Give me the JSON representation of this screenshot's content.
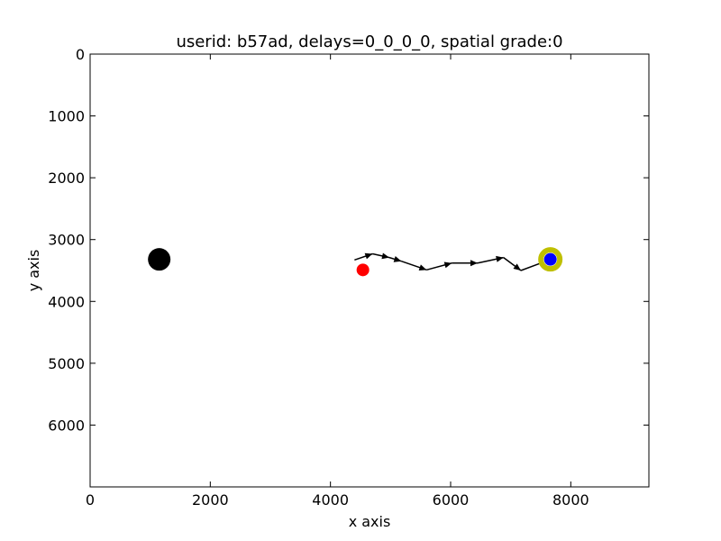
{
  "chart_data": {
    "type": "scatter",
    "title": "userid: b57ad, delays=0_0_0_0, spatial grade:0",
    "xlabel": "x axis",
    "ylabel": "y axis",
    "xlim": [
      0,
      9300
    ],
    "ylim": [
      0,
      7000
    ],
    "y_inverted": true,
    "grid": false,
    "x_ticks": [
      0,
      2000,
      4000,
      6000,
      8000
    ],
    "y_ticks": [
      0,
      1000,
      2000,
      3000,
      4000,
      5000,
      6000
    ],
    "markers": [
      {
        "id": "black-circle",
        "x": 1150,
        "y": 3320,
        "color": "#000000"
      },
      {
        "id": "red-circle",
        "x": 4540,
        "y": 3490,
        "color": "#ff0000"
      },
      {
        "id": "target-ring",
        "x": 7660,
        "y": 3320,
        "color": "#bfbf00"
      },
      {
        "id": "blue-circle",
        "x": 7660,
        "y": 3320,
        "color": "#0000ff"
      }
    ],
    "trajectory": {
      "color": "#000000",
      "points": [
        {
          "x": 4400,
          "y": 3330
        },
        {
          "x": 4700,
          "y": 3230
        },
        {
          "x": 4980,
          "y": 3290
        },
        {
          "x": 5180,
          "y": 3350
        },
        {
          "x": 5600,
          "y": 3490
        },
        {
          "x": 6020,
          "y": 3380
        },
        {
          "x": 6450,
          "y": 3380
        },
        {
          "x": 6880,
          "y": 3290
        },
        {
          "x": 7170,
          "y": 3500
        },
        {
          "x": 7500,
          "y": 3380
        }
      ]
    }
  }
}
